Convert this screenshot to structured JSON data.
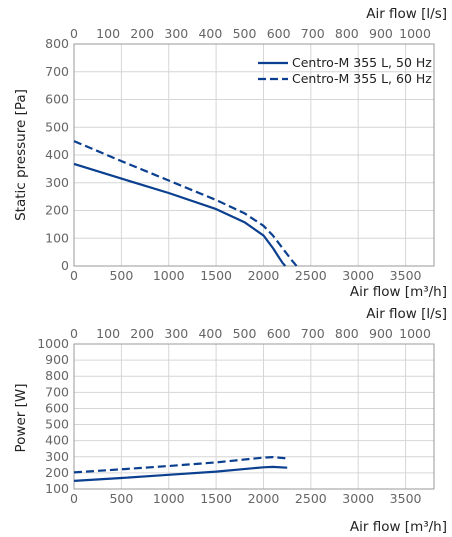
{
  "chart_data": [
    {
      "type": "line",
      "title": "",
      "xlabel": "Air flow [m³/h]",
      "ylabel": "Static pressure [Pa]",
      "secondary_xlabel": "Air flow [l/s]",
      "xlim": [
        0,
        3800
      ],
      "ylim": [
        0,
        800
      ],
      "secondary_xlim": [
        0,
        1055.6
      ],
      "x_ticks": [
        0,
        500,
        1000,
        1500,
        2000,
        2500,
        3000,
        3500
      ],
      "y_ticks": [
        0,
        100,
        200,
        300,
        400,
        500,
        600,
        700,
        800
      ],
      "secondary_x_ticks": [
        0,
        100,
        200,
        300,
        400,
        500,
        600,
        700,
        800,
        900,
        1000
      ],
      "grid": true,
      "legend_position": "top-right",
      "series": [
        {
          "name": "Centro-M 355 L, 50 Hz",
          "style": "solid",
          "color": "#0b3f8f",
          "x": [
            0,
            500,
            1000,
            1500,
            1800,
            2000,
            2100,
            2150,
            2200,
            2230
          ],
          "y": [
            368,
            315,
            263,
            205,
            158,
            110,
            65,
            38,
            12,
            0
          ]
        },
        {
          "name": "Centro-M 355 L, 60 Hz",
          "style": "dashed",
          "color": "#0b3f8f",
          "x": [
            0,
            500,
            1000,
            1500,
            1800,
            2000,
            2100,
            2200,
            2300,
            2350
          ],
          "y": [
            450,
            378,
            308,
            238,
            190,
            145,
            110,
            65,
            20,
            0
          ]
        }
      ]
    },
    {
      "type": "line",
      "title": "",
      "xlabel": "Air flow [m³/h]",
      "ylabel": "Power [W]",
      "secondary_xlabel": "Air flow [l/s]",
      "xlim": [
        0,
        3800
      ],
      "ylim": [
        100,
        1000
      ],
      "secondary_xlim": [
        0,
        1055.6
      ],
      "x_ticks": [
        0,
        500,
        1000,
        1500,
        2000,
        2500,
        3000,
        3500
      ],
      "y_ticks": [
        100,
        200,
        300,
        400,
        500,
        600,
        700,
        800,
        900,
        1000
      ],
      "secondary_x_ticks": [
        0,
        100,
        200,
        300,
        400,
        500,
        600,
        700,
        800,
        900,
        1000
      ],
      "grid": true,
      "series": [
        {
          "name": "Centro-M 355 L, 50 Hz",
          "style": "solid",
          "color": "#0b3f8f",
          "x": [
            0,
            500,
            1000,
            1500,
            2000,
            2100,
            2250
          ],
          "y": [
            150,
            168,
            188,
            208,
            235,
            237,
            232
          ]
        },
        {
          "name": "Centro-M 355 L, 60 Hz",
          "style": "dashed",
          "color": "#0b3f8f",
          "x": [
            0,
            500,
            1000,
            1500,
            2000,
            2100,
            2250
          ],
          "y": [
            203,
            222,
            243,
            265,
            295,
            298,
            290
          ]
        }
      ]
    }
  ]
}
